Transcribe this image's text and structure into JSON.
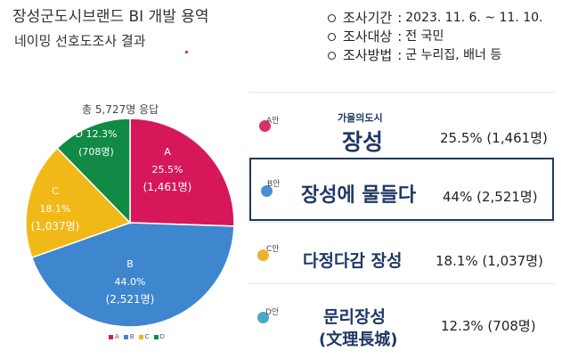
{
  "header": {
    "title_line1": "장성군도시브랜드 BI 개발 용역",
    "title_line2": "네이밍 선호도조사  결과"
  },
  "survey_info": [
    {
      "key": "조사기간",
      "value": "2023. 11. 6. ~ 11. 10."
    },
    {
      "key": "조사대상",
      "value": "전 국민"
    },
    {
      "key": "조사방법",
      "value": "군 누리집, 배너 등"
    }
  ],
  "chart_caption": "총 5,727명 응답",
  "chart_data": {
    "type": "pie",
    "total_responses": 5727,
    "categories": [
      "A",
      "B",
      "C",
      "D"
    ],
    "values": [
      25.5,
      44.0,
      18.1,
      12.3
    ],
    "counts": [
      1461,
      2521,
      1037,
      708
    ],
    "colors": [
      "#d6185a",
      "#3e87cf",
      "#f1b918",
      "#118a45"
    ],
    "slice_labels": [
      {
        "name": "A",
        "pct": "25.5%",
        "count": "(1,461명)"
      },
      {
        "name": "B",
        "pct": "44.0%",
        "count": "(2,521명)"
      },
      {
        "name": "C",
        "pct": "18.1%",
        "count": "(1,037명)"
      },
      {
        "name": "D 12.3%",
        "pct": "",
        "count": "(708명)"
      }
    ],
    "legend": [
      "A",
      "B",
      "C",
      "D"
    ],
    "legend_position": "bottom"
  },
  "options": [
    {
      "tag": "A안",
      "subtitle": "가을의도시",
      "name": "장성",
      "stat": "25.5% (1,461명)",
      "color": "#d9306a",
      "highlighted": false
    },
    {
      "tag": "B안",
      "subtitle": "",
      "name": "장성에 물들다",
      "stat": "44%  (2,521명)",
      "color": "#4a8fd4",
      "highlighted": true
    },
    {
      "tag": "C안",
      "subtitle": "",
      "name": "다정다감 장성",
      "stat": "18.1% (1,037명)",
      "color": "#eab133",
      "highlighted": false
    },
    {
      "tag": "D안",
      "subtitle": "",
      "name": "문리장성",
      "name2": "(文理長城)",
      "stat": "12.3%  (708명)",
      "color": "#49a8c7",
      "highlighted": false
    }
  ]
}
